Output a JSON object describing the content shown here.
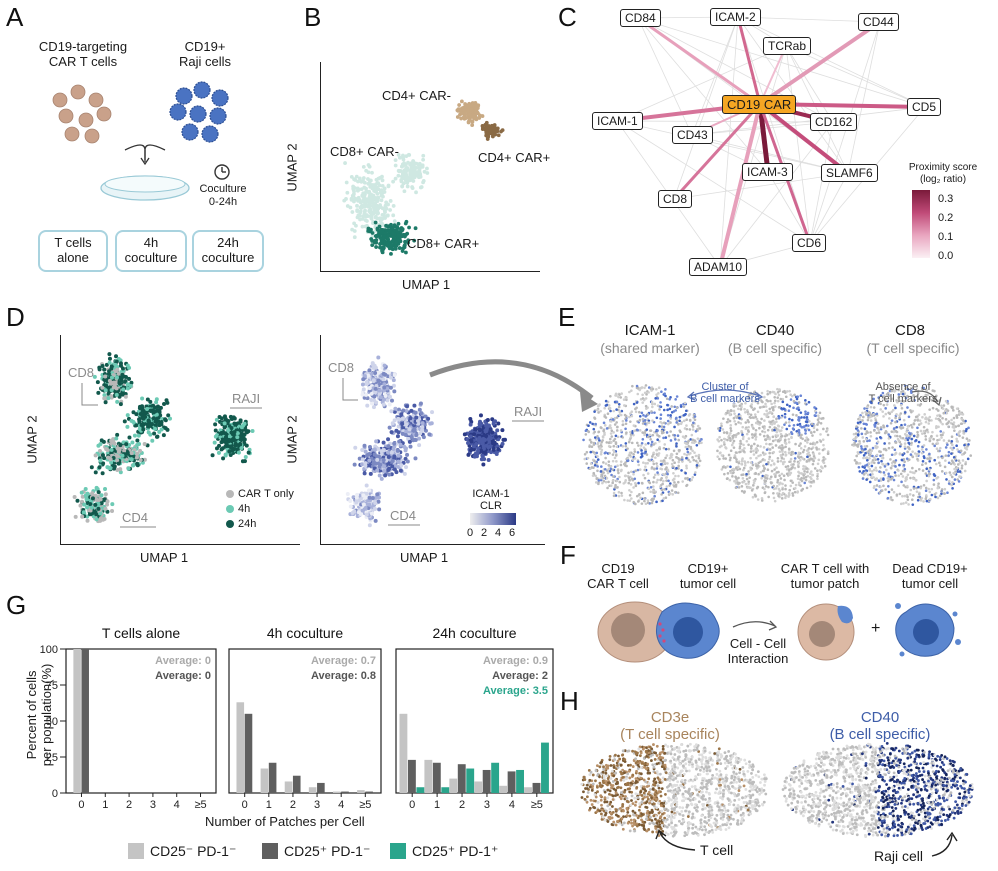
{
  "panels": {
    "A": {
      "label": "A",
      "car_t_title": "CD19-targeting\nCAR T cells",
      "raji_title": "CD19+\nRaji cells",
      "coculture": "Coculture\n0-24h",
      "conditions": [
        "T cells\nalone",
        "4h\ncoculture",
        "24h\ncoculture"
      ],
      "colors": {
        "tcell": "#c9a18a",
        "raji": "#4a73c2",
        "box_border": "#a9d3df"
      }
    },
    "B": {
      "label": "B",
      "xlabel": "UMAP 1",
      "ylabel": "UMAP 2",
      "clusters": [
        "CD4+ CAR-",
        "CD4+ CAR+",
        "CD8+ CAR-",
        "CD8+ CAR+"
      ],
      "colors": {
        "cd4_neg": "#c8a983",
        "cd4_pos": "#8a6a45",
        "cd8_neg": "#cfe8e2",
        "cd8_pos": "#1d7a68"
      }
    },
    "C": {
      "label": "C",
      "center_node": "CD19 CAR",
      "nodes": [
        "CD84",
        "ICAM-2",
        "CD44",
        "TCRab",
        "ICAM-1",
        "CD5",
        "CD43",
        "CD162",
        "ICAM-3",
        "SLAMF6",
        "CD8",
        "CD6",
        "ADAM10"
      ],
      "legend_title": "Proximity score\n(log₂ ratio)",
      "legend_ticks": [
        "0.3",
        "0.2",
        "0.1",
        "0.0"
      ],
      "colors": {
        "high": "#7a1a3a",
        "low": "#f7e4ec"
      }
    },
    "D": {
      "label": "D",
      "xlabel": "UMAP 1",
      "ylabel": "UMAP 2",
      "annotations": [
        "CD8",
        "RAJI",
        "CD4"
      ],
      "legend": [
        "CAR T only",
        "4h",
        "24h"
      ],
      "legend_colors": [
        "#b8b8b8",
        "#6ccab4",
        "#12584c"
      ],
      "scale_title": "ICAM-1\nCLR",
      "scale_ticks": [
        "0",
        "2",
        "4",
        "6"
      ]
    },
    "E": {
      "label": "E",
      "markers": [
        {
          "name": "ICAM-1",
          "sub": "(shared marker)"
        },
        {
          "name": "CD40",
          "sub": "(B cell specific)"
        },
        {
          "name": "CD8",
          "sub": "(T cell specific)"
        }
      ],
      "annot_cluster": "Cluster of\nB cell markers",
      "annot_absence": "Absence of\nT cell markers"
    },
    "F": {
      "label": "F",
      "car_t": "CD19\nCAR T cell",
      "tumor": "CD19+\ntumor cell",
      "interaction": "Cell - Cell\nInteraction",
      "patch": "CAR T cell with\ntumor patch",
      "dead": "Dead CD19+\ntumor cell",
      "plus": "+"
    },
    "G": {
      "label": "G",
      "ylabel": "Percent of cells\nper population(%)",
      "xlabel": "Number of Patches per Cell",
      "yticks": [
        "0",
        "25",
        "50",
        "75",
        "100"
      ],
      "legend": [
        "CD25⁻ PD-1⁻",
        "CD25⁺ PD-1⁻",
        "CD25⁺ PD-1⁺"
      ],
      "legend_colors": [
        "#c4c4c4",
        "#5f5f5f",
        "#2aa58c"
      ],
      "averages": [
        {
          "text": [
            "Average: 0",
            "Average: 0"
          ]
        },
        {
          "text": [
            "Average: 0.7",
            "Average: 0.8"
          ]
        },
        {
          "text": [
            "Average: 0.9",
            "Average: 2",
            "Average: 3.5"
          ]
        }
      ]
    },
    "H": {
      "label": "H",
      "cd3e": "CD3e\n(T cell specific)",
      "cd40": "CD40\n(B cell specific)",
      "tcell": "T cell",
      "raji": "Raji cell"
    }
  },
  "chart_data": {
    "type": "bar",
    "title": "",
    "xlabel": "Number of Patches per Cell",
    "ylabel": "Percent of cells per population(%)",
    "ylim": [
      0,
      100
    ],
    "categories": [
      "0",
      "1",
      "2",
      "3",
      "4",
      "≥5"
    ],
    "facets": [
      {
        "title": "T cells alone",
        "series": [
          {
            "name": "CD25⁻ PD-1⁻",
            "values": [
              100,
              0,
              0,
              0,
              0,
              0
            ]
          },
          {
            "name": "CD25⁺ PD-1⁻",
            "values": [
              100,
              0,
              0,
              0,
              0,
              0
            ]
          }
        ]
      },
      {
        "title": "4h coculture",
        "series": [
          {
            "name": "CD25⁻ PD-1⁻",
            "values": [
              63,
              17,
              8,
              4,
              1,
              2
            ]
          },
          {
            "name": "CD25⁺ PD-1⁻",
            "values": [
              55,
              21,
              12,
              7,
              1,
              1
            ]
          }
        ]
      },
      {
        "title": "24h coculture",
        "series": [
          {
            "name": "CD25⁻ PD-1⁻",
            "values": [
              55,
              23,
              10,
              8,
              5,
              4
            ]
          },
          {
            "name": "CD25⁺ PD-1⁻",
            "values": [
              23,
              21,
              20,
              16,
              15,
              7
            ]
          },
          {
            "name": "CD25⁺ PD-1⁺",
            "values": [
              4,
              4,
              17,
              21,
              16,
              35
            ]
          }
        ]
      }
    ]
  }
}
